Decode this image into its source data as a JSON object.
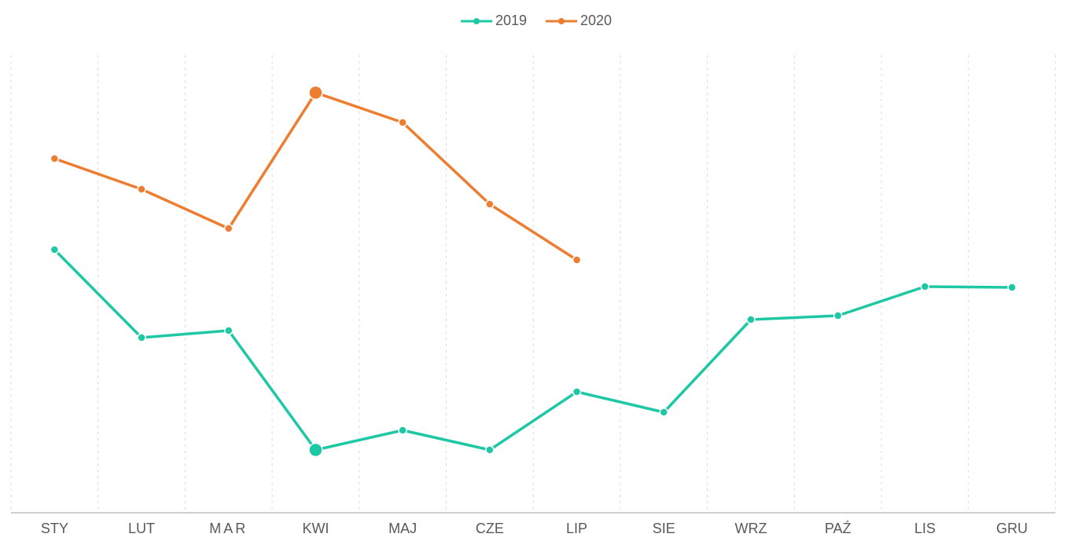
{
  "chart_data": {
    "type": "line",
    "categories": [
      "STY",
      "LUT",
      "MAR",
      "KWI",
      "MAJ",
      "CZE",
      "LIP",
      "SIE",
      "WRZ",
      "PAŹ",
      "LIS",
      "GRU"
    ],
    "series": [
      {
        "name": "2019",
        "color": "#1ec8a5",
        "values": [
          335,
          223,
          232,
          80,
          105,
          80,
          154,
          128,
          246,
          251,
          288,
          287
        ]
      },
      {
        "name": "2020",
        "color": "#ed7d31",
        "values": [
          451,
          412,
          362,
          535,
          497,
          393,
          322,
          null,
          null,
          null,
          null,
          null
        ]
      }
    ],
    "ylim": [
      0,
      583
    ],
    "grid": true,
    "legend": "top",
    "highlight_category": "KWI"
  }
}
